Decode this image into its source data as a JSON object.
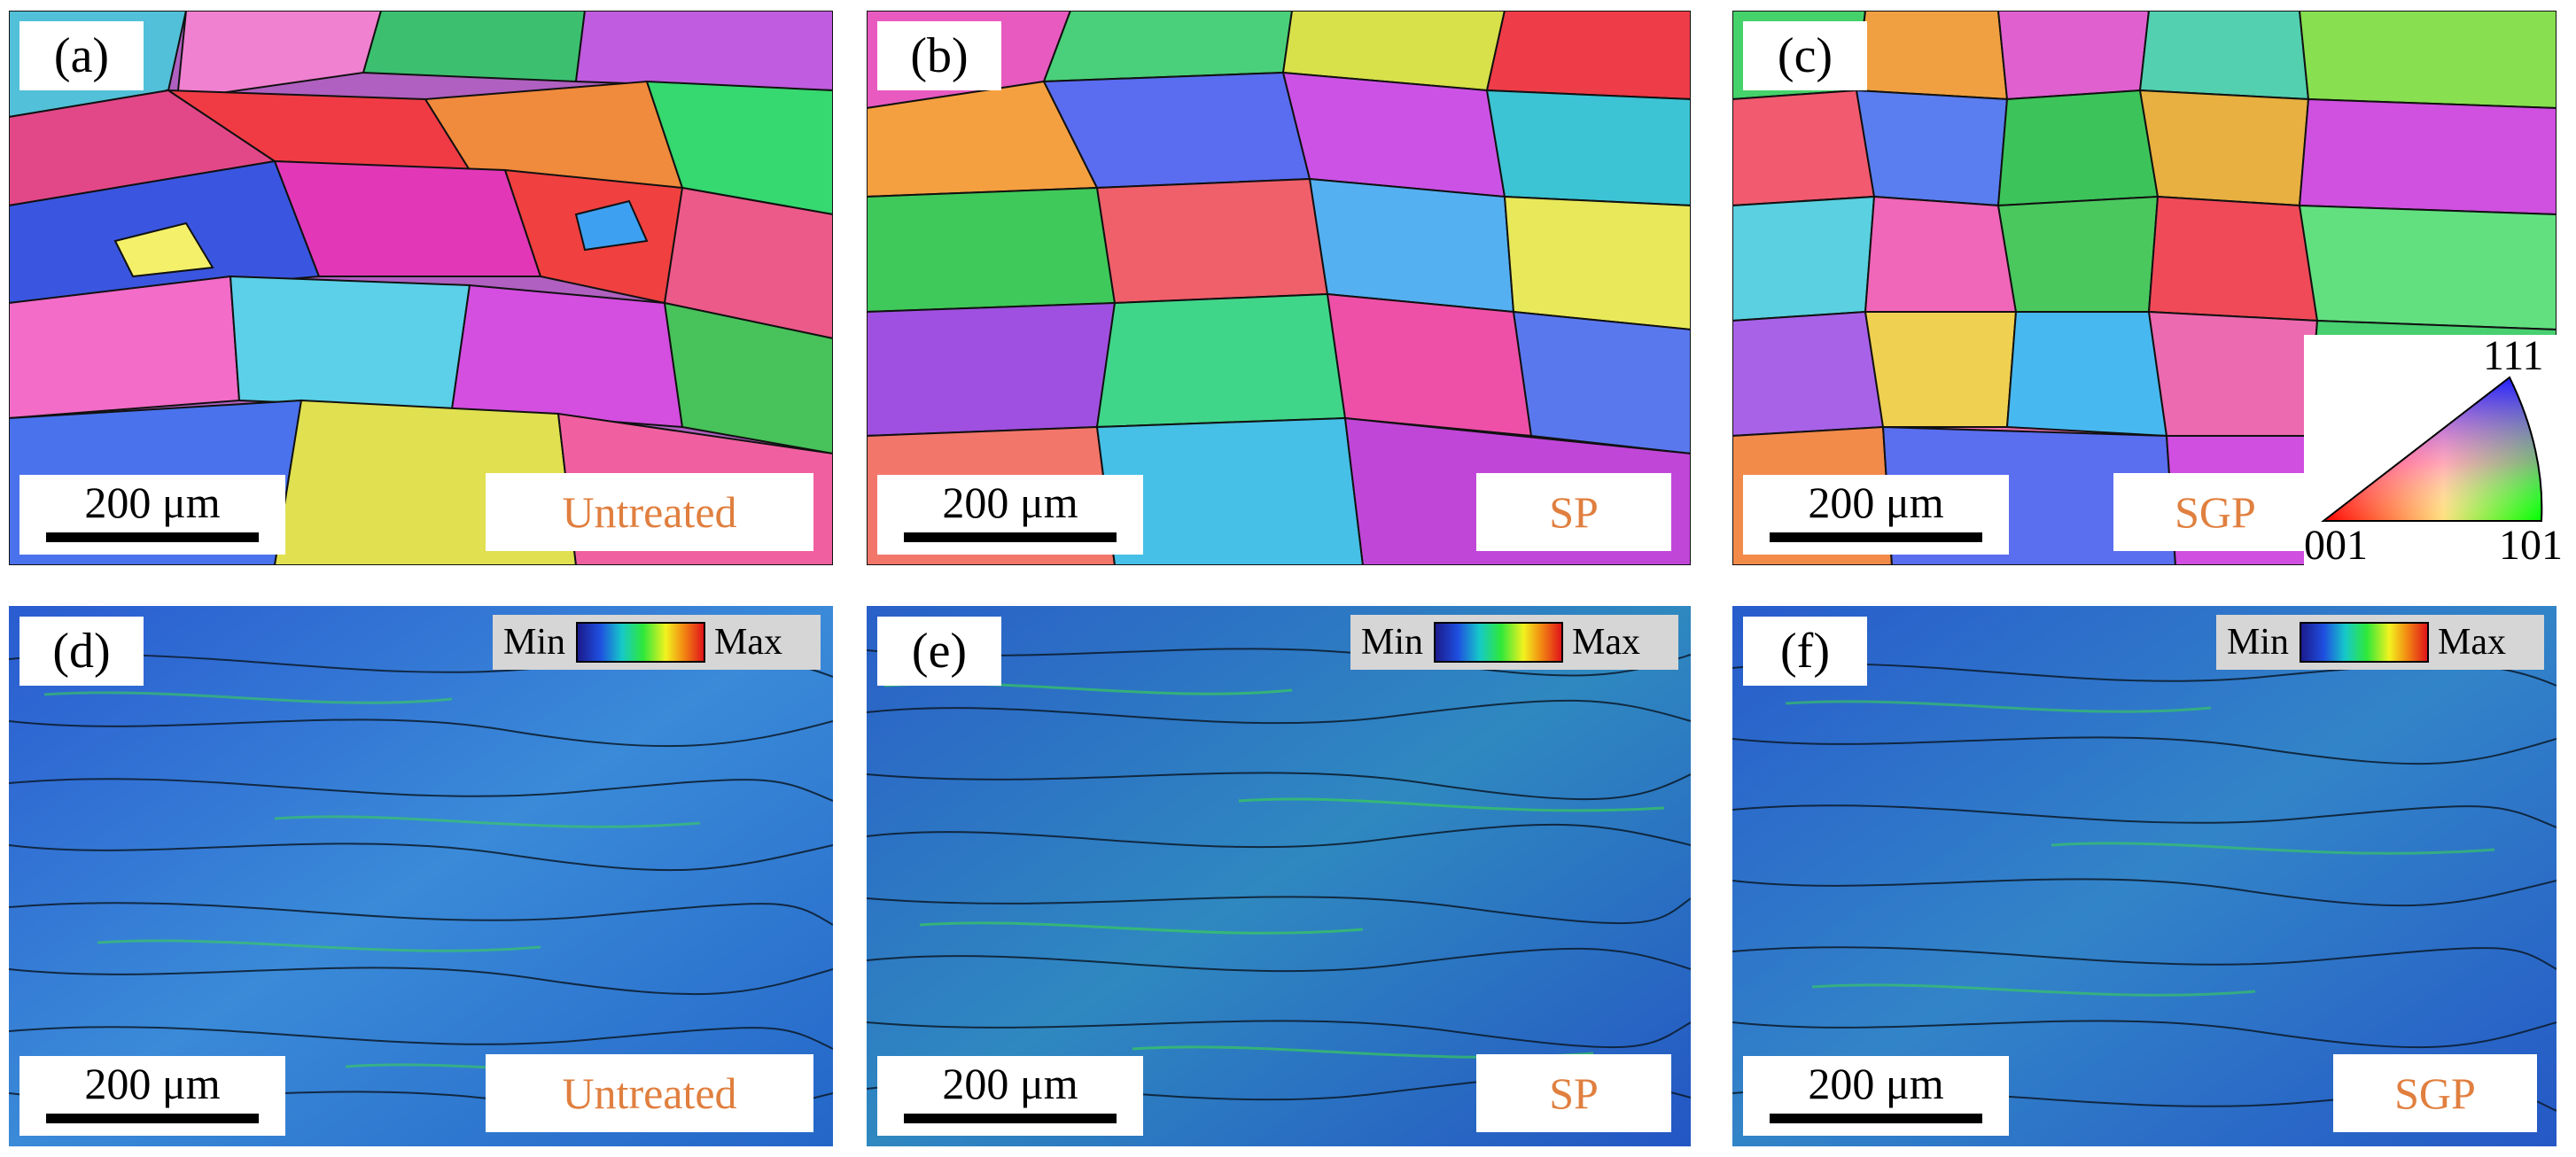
{
  "colors": {
    "label_text": "#000000",
    "condition_text": "#e07f3f",
    "legend_box": "#d6d6d6"
  },
  "panels": {
    "a": {
      "label": "(a)",
      "scale": "200 μm",
      "condition": "Untreated",
      "map": "orientation"
    },
    "b": {
      "label": "(b)",
      "scale": "200 μm",
      "condition": "SP",
      "map": "orientation"
    },
    "c": {
      "label": "(c)",
      "scale": "200 μm",
      "condition": "SGP",
      "map": "orientation"
    },
    "d": {
      "label": "(d)",
      "scale": "200 μm",
      "condition": "Untreated",
      "map": "misorientation",
      "legend_min": "Min",
      "legend_max": "Max"
    },
    "e": {
      "label": "(e)",
      "scale": "200 μm",
      "condition": "SP",
      "map": "misorientation",
      "legend_min": "Min",
      "legend_max": "Max"
    },
    "f": {
      "label": "(f)",
      "scale": "200 μm",
      "condition": "SGP",
      "map": "misorientation",
      "legend_min": "Min",
      "legend_max": "Max"
    }
  },
  "ipf_key": {
    "top": "111",
    "left": "001",
    "right": "101"
  }
}
